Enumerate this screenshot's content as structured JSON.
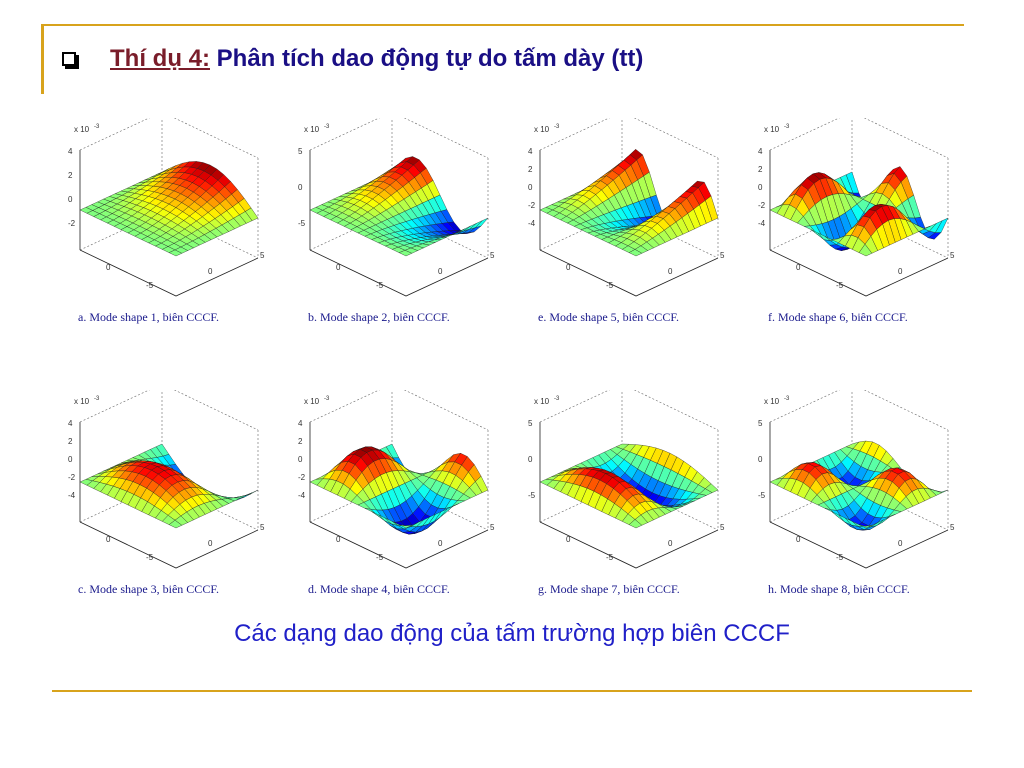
{
  "slide": {
    "title_example": "Thí dụ 4:",
    "title_rest": " Phân tích dao động tự do tấm dày (tt)",
    "caption": "Các dạng dao động của tấm trường hợp biên CCCF"
  },
  "colors": {
    "frame": "#d8a31c",
    "title": "#1a0f85",
    "title_example": "#7a1d2a",
    "caption": "#2020c8",
    "subcaption": "#1a1a8c"
  },
  "panels": [
    {
      "exponent_label": "x 10",
      "exponent": "-3",
      "z_ticks": [
        "4",
        "2",
        "0",
        "-2"
      ],
      "axis_ticks_a": [
        "0",
        "-5"
      ],
      "axis_ticks_b": [
        "0",
        "5"
      ],
      "caption": "a. Mode shape 1, biên CCCF.",
      "mode": 1
    },
    {
      "exponent_label": "x 10",
      "exponent": "-3",
      "z_ticks": [
        "5",
        "0",
        "-5"
      ],
      "axis_ticks_a": [
        "0",
        "-5"
      ],
      "axis_ticks_b": [
        "0",
        "5"
      ],
      "caption": "b. Mode shape 2, biên CCCF.",
      "mode": 2
    },
    {
      "exponent_label": "x 10",
      "exponent": "-3",
      "z_ticks": [
        "4",
        "2",
        "0",
        "-2",
        "-4"
      ],
      "axis_ticks_a": [
        "0",
        "-5"
      ],
      "axis_ticks_b": [
        "0",
        "5"
      ],
      "caption": "e. Mode shape 5, biên CCCF.",
      "mode": 5
    },
    {
      "exponent_label": "x 10",
      "exponent": "-3",
      "z_ticks": [
        "4",
        "2",
        "0",
        "-2",
        "-4"
      ],
      "axis_ticks_a": [
        "0",
        "-5"
      ],
      "axis_ticks_b": [
        "0",
        "5"
      ],
      "caption": "f. Mode shape 6, biên CCCF.",
      "mode": 6
    },
    {
      "exponent_label": "x 10",
      "exponent": "-3",
      "z_ticks": [
        "4",
        "2",
        "0",
        "-2",
        "-4"
      ],
      "axis_ticks_a": [
        "0",
        "-5"
      ],
      "axis_ticks_b": [
        "0",
        "5"
      ],
      "caption": "c. Mode shape 3, biên CCCF.",
      "mode": 3
    },
    {
      "exponent_label": "x 10",
      "exponent": "-3",
      "z_ticks": [
        "4",
        "2",
        "0",
        "-2",
        "-4"
      ],
      "axis_ticks_a": [
        "0",
        "-5"
      ],
      "axis_ticks_b": [
        "0",
        "5"
      ],
      "caption": "d. Mode shape 4, biên CCCF.",
      "mode": 4
    },
    {
      "exponent_label": "x 10",
      "exponent": "-3",
      "z_ticks": [
        "5",
        "0",
        "-5"
      ],
      "axis_ticks_a": [
        "0",
        "-5"
      ],
      "axis_ticks_b": [
        "0",
        "5"
      ],
      "caption": "g. Mode shape 7, biên CCCF.",
      "mode": 7
    },
    {
      "exponent_label": "x 10",
      "exponent": "-3",
      "z_ticks": [
        "5",
        "0",
        "-5"
      ],
      "axis_ticks_a": [
        "0",
        "-5"
      ],
      "axis_ticks_b": [
        "0",
        "5"
      ],
      "caption": "h. Mode shape 8, biên CCCF.",
      "mode": 8
    }
  ]
}
